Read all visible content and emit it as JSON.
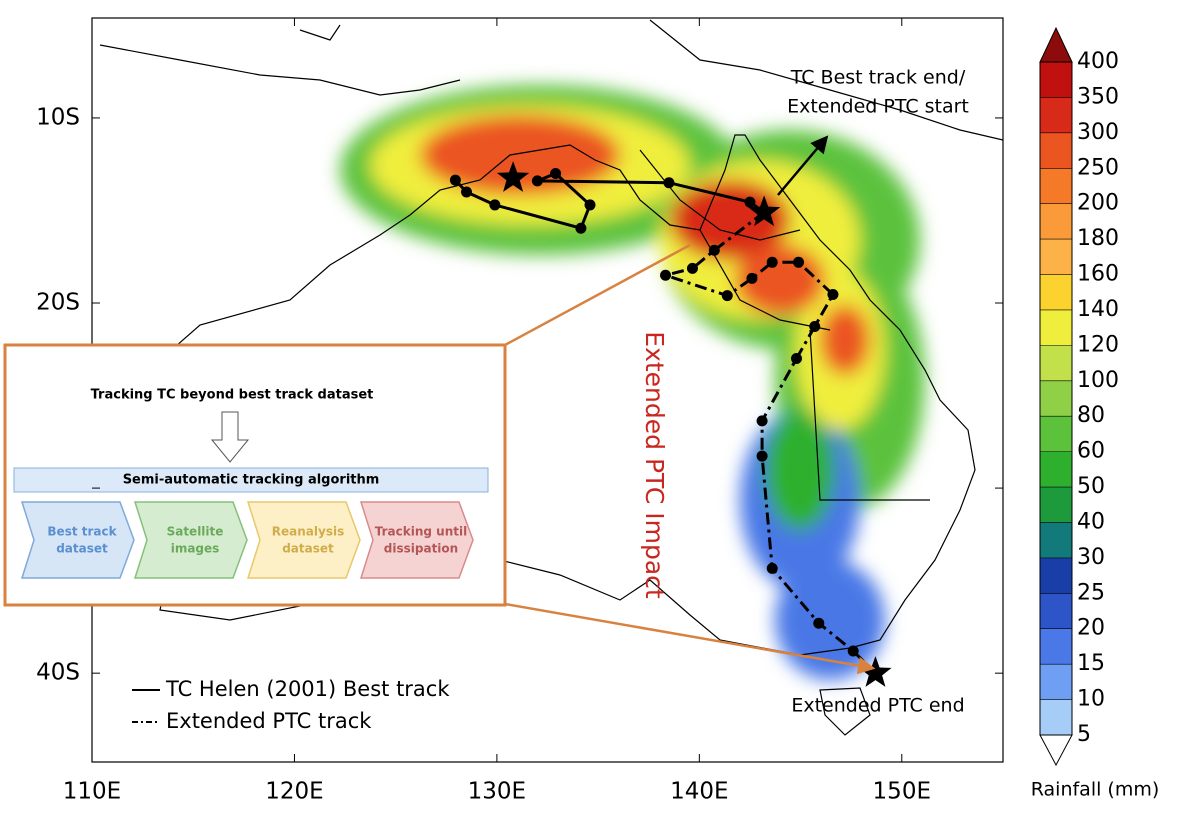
{
  "map": {
    "x_axis": {
      "lim": [
        110,
        155
      ],
      "ticks": [
        {
          "value": 110,
          "label": "110E"
        },
        {
          "value": 120,
          "label": "120E"
        },
        {
          "value": 130,
          "label": "130E"
        },
        {
          "value": 140,
          "label": "140E"
        },
        {
          "value": 150,
          "label": "150E"
        }
      ]
    },
    "y_axis": {
      "lim": [
        -4.6,
        -44.8
      ],
      "ticks": [
        {
          "value": -10,
          "label": "10S"
        },
        {
          "value": -20,
          "label": "20S"
        },
        {
          "value": -30,
          "label": ""
        },
        {
          "value": -40,
          "label": "40S"
        }
      ]
    },
    "best_track": {
      "lon": [
        127.95,
        128.5,
        129.9,
        134.15,
        134.6,
        132.9,
        132.0,
        138.5,
        142.5,
        143.2
      ],
      "lat": [
        -13.36,
        -14.0,
        -14.7,
        -15.96,
        -14.7,
        -13.0,
        -13.4,
        -13.5,
        -14.55,
        -15.1
      ]
    },
    "extended_track": {
      "lon": [
        143.2,
        140.74,
        139.66,
        138.33,
        141.38,
        142.6,
        143.6,
        144.9,
        146.6,
        145.7,
        144.8,
        143.1,
        143.1,
        143.6,
        145.9,
        147.6,
        148.7
      ],
      "lat": [
        -15.1,
        -17.15,
        -18.13,
        -18.5,
        -19.6,
        -18.67,
        -17.8,
        -17.8,
        -19.54,
        -21.27,
        -23.0,
        -26.37,
        -28.27,
        -34.34,
        -37.3,
        -38.8,
        -40.0
      ]
    },
    "stars": {
      "lon": [
        130.8,
        143.2,
        148.7
      ],
      "lat": [
        -13.25,
        -15.1,
        -40.0
      ]
    },
    "annotations": {
      "best_track_end": [
        "TC Best track end/",
        "Extended PTC start"
      ],
      "impact": "Extended PTC Impact",
      "ptc_end": "Extended PTC end"
    },
    "legend": [
      "TC Helen (2001) Best track",
      "Extended PTC track"
    ],
    "colorbar": {
      "title": "Rainfall (mm)",
      "levels": [
        5,
        10,
        15,
        20,
        25,
        30,
        40,
        50,
        60,
        80,
        100,
        120,
        140,
        160,
        180,
        200,
        250,
        300,
        350,
        400
      ],
      "colors": [
        "#ffffff",
        "#a6cdf7",
        "#6e9ff2",
        "#4a78e6",
        "#2d55c8",
        "#1a3ea8",
        "#127a7a",
        "#1c9a3c",
        "#2eb02e",
        "#5cc23c",
        "#8fd046",
        "#c2e04a",
        "#f0ee3c",
        "#fbd22e",
        "#fdb248",
        "#fb9a38",
        "#f57a28",
        "#eb5520",
        "#d82a18",
        "#c01010",
        "#8c0c0c"
      ]
    }
  },
  "inset": {
    "title": "Tracking TC beyond best track dataset",
    "algorithm": "Semi-automatic tracking algorithm",
    "steps": [
      [
        "Best track",
        "dataset"
      ],
      [
        "Satellite",
        "images"
      ],
      [
        "Reanalysis",
        "dataset"
      ],
      [
        "Tracking until",
        "dissipation"
      ]
    ]
  }
}
